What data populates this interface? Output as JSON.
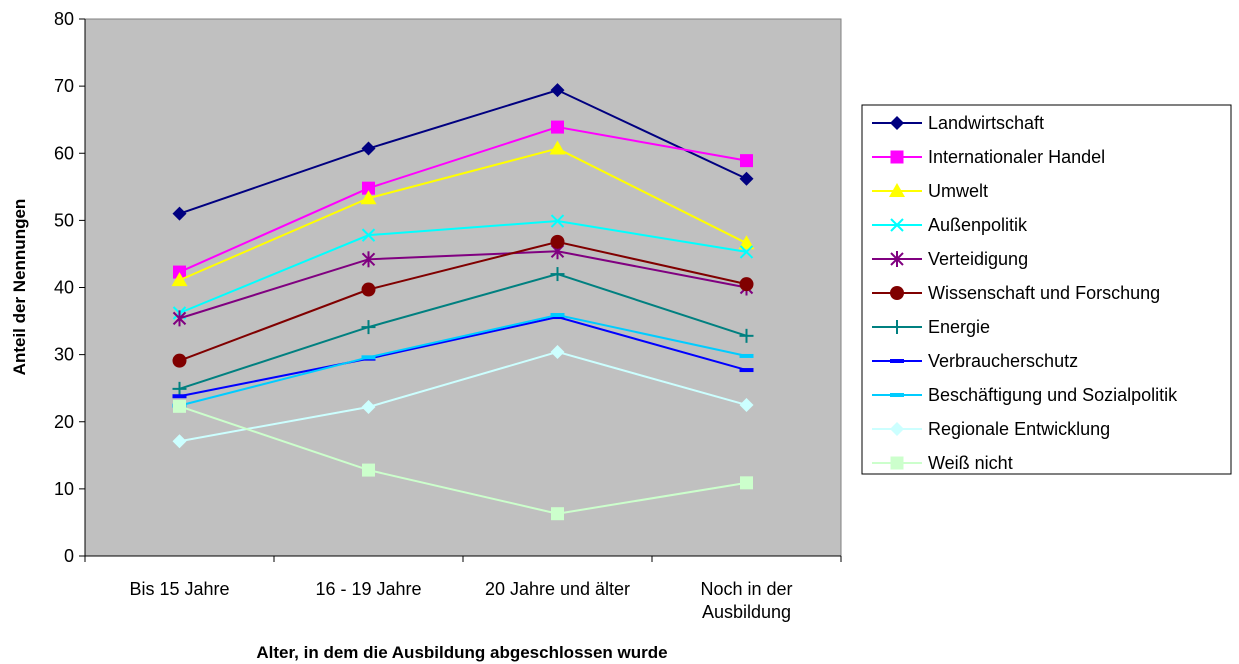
{
  "chart_data": {
    "type": "line",
    "title": "",
    "xlabel": "Alter, in dem die Ausbildung abgeschlossen wurde",
    "ylabel": "Anteil der Nennungen",
    "categories": [
      [
        "Bis 15 Jahre"
      ],
      [
        "16 - 19 Jahre"
      ],
      [
        "20 Jahre und älter"
      ],
      [
        "Noch in der",
        "Ausbildung"
      ]
    ],
    "ylim": [
      0,
      80
    ],
    "yticks": [
      0,
      10,
      20,
      30,
      40,
      50,
      60,
      70,
      80
    ],
    "plot_background": "#c0c0c0",
    "grid": false,
    "legend_position": "right",
    "series": [
      {
        "name": "Landwirtschaft",
        "values": [
          51,
          60.7,
          69.4,
          56.2
        ],
        "color": "#000080",
        "marker": "diamond"
      },
      {
        "name": "Internationaler Handel",
        "values": [
          42.3,
          54.8,
          63.9,
          58.9
        ],
        "color": "#ff00ff",
        "marker": "square"
      },
      {
        "name": "Umwelt",
        "values": [
          41.1,
          53.3,
          60.7,
          46.6
        ],
        "color": "#ffff00",
        "marker": "triangle"
      },
      {
        "name": "Außenpolitik",
        "values": [
          36.2,
          47.8,
          49.9,
          45.3
        ],
        "color": "#00ffff",
        "marker": "x"
      },
      {
        "name": "Verteidigung",
        "values": [
          35.4,
          44.2,
          45.4,
          40
        ],
        "color": "#800080",
        "marker": "asterisk"
      },
      {
        "name": "Wissenschaft und Forschung",
        "values": [
          29.1,
          39.7,
          46.8,
          40.5
        ],
        "color": "#800000",
        "marker": "circle"
      },
      {
        "name": "Energie",
        "values": [
          24.9,
          34.1,
          42,
          32.8
        ],
        "color": "#008080",
        "marker": "plus"
      },
      {
        "name": "Verbraucherschutz",
        "values": [
          23.8,
          29.4,
          35.6,
          27.7
        ],
        "color": "#0000ff",
        "marker": "dash"
      },
      {
        "name": "Beschäftigung und Sozialpolitik",
        "values": [
          22.4,
          29.6,
          35.9,
          29.8
        ],
        "color": "#00ccff",
        "marker": "dash"
      },
      {
        "name": "Regionale Entwicklung",
        "values": [
          17.1,
          22.2,
          30.4,
          22.5
        ],
        "color": "#ccffff",
        "marker": "diamond"
      },
      {
        "name": "Weiß nicht",
        "values": [
          22.3,
          12.8,
          6.3,
          10.9
        ],
        "color": "#ccffcc",
        "marker": "square"
      }
    ]
  }
}
